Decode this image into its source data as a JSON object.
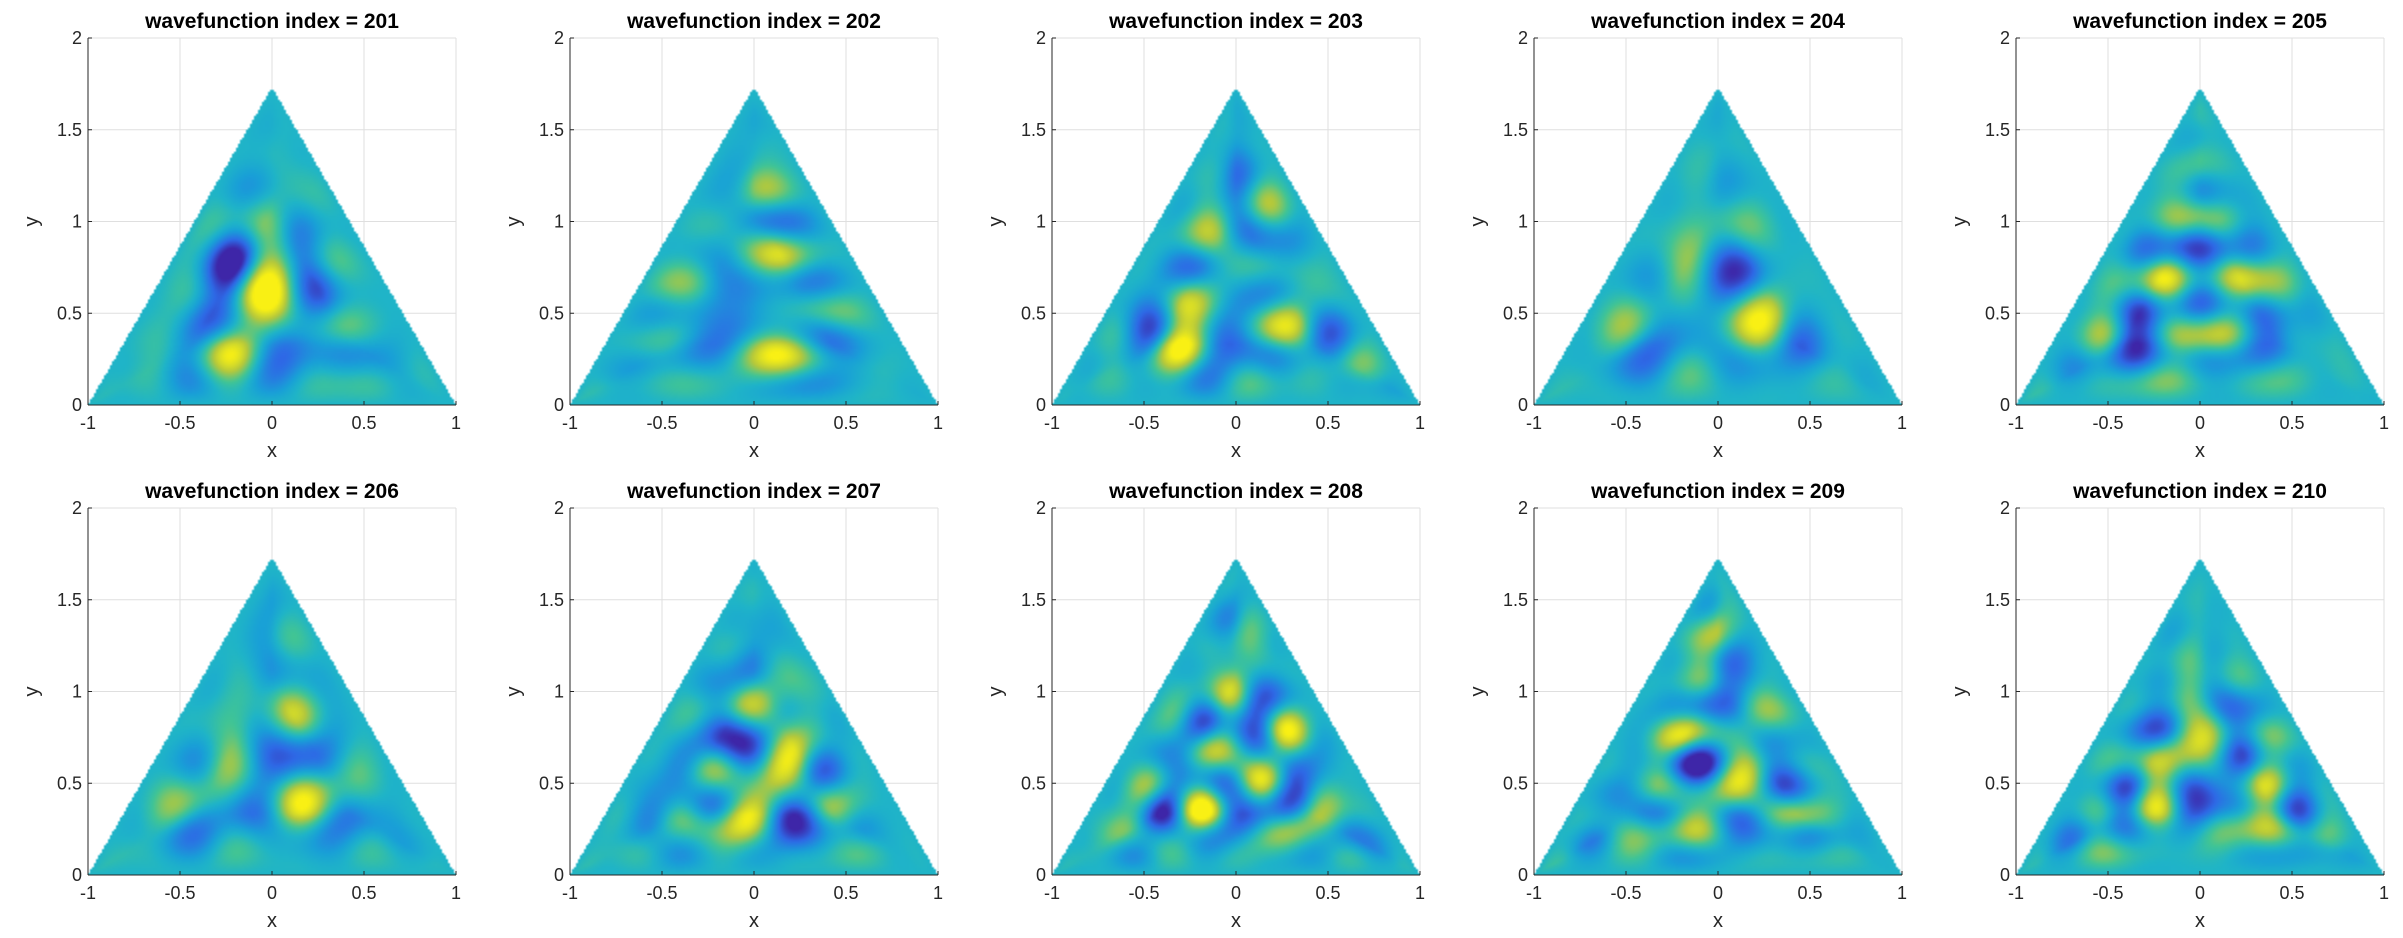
{
  "chart_data": [
    {
      "type": "heatmap",
      "title": "wavefunction index = 201",
      "xlabel": "x",
      "ylabel": "y",
      "xlim": [
        -1,
        1
      ],
      "ylim": [
        0,
        2
      ],
      "xticks": [
        "-1",
        "-0.5",
        "0",
        "0.5",
        "1"
      ],
      "yticks": [
        "0",
        "0.5",
        "1",
        "1.5",
        "2"
      ],
      "grid": true,
      "domain": "equilateral triangle (-1,0),(1,0),(0,1.732)",
      "colormap": "parula"
    },
    {
      "type": "heatmap",
      "title": "wavefunction index = 202",
      "xlabel": "x",
      "ylabel": "y",
      "xlim": [
        -1,
        1
      ],
      "ylim": [
        0,
        2
      ],
      "xticks": [
        "-1",
        "-0.5",
        "0",
        "0.5",
        "1"
      ],
      "yticks": [
        "0",
        "0.5",
        "1",
        "1.5",
        "2"
      ],
      "grid": true,
      "domain": "equilateral triangle (-1,0),(1,0),(0,1.732)",
      "colormap": "parula"
    },
    {
      "type": "heatmap",
      "title": "wavefunction index = 203",
      "xlabel": "x",
      "ylabel": "y",
      "xlim": [
        -1,
        1
      ],
      "ylim": [
        0,
        2
      ],
      "xticks": [
        "-1",
        "-0.5",
        "0",
        "0.5",
        "1"
      ],
      "yticks": [
        "0",
        "0.5",
        "1",
        "1.5",
        "2"
      ],
      "grid": true,
      "domain": "equilateral triangle (-1,0),(1,0),(0,1.732)",
      "colormap": "parula"
    },
    {
      "type": "heatmap",
      "title": "wavefunction index = 204",
      "xlabel": "x",
      "ylabel": "y",
      "xlim": [
        -1,
        1
      ],
      "ylim": [
        0,
        2
      ],
      "xticks": [
        "-1",
        "-0.5",
        "0",
        "0.5",
        "1"
      ],
      "yticks": [
        "0",
        "0.5",
        "1",
        "1.5",
        "2"
      ],
      "grid": true,
      "domain": "equilateral triangle (-1,0),(1,0),(0,1.732)",
      "colormap": "parula"
    },
    {
      "type": "heatmap",
      "title": "wavefunction index = 205",
      "xlabel": "x",
      "ylabel": "y",
      "xlim": [
        -1,
        1
      ],
      "ylim": [
        0,
        2
      ],
      "xticks": [
        "-1",
        "-0.5",
        "0",
        "0.5",
        "1"
      ],
      "yticks": [
        "0",
        "0.5",
        "1",
        "1.5",
        "2"
      ],
      "grid": true,
      "domain": "equilateral triangle (-1,0),(1,0),(0,1.732)",
      "colormap": "parula"
    },
    {
      "type": "heatmap",
      "title": "wavefunction index = 206",
      "xlabel": "x",
      "ylabel": "y",
      "xlim": [
        -1,
        1
      ],
      "ylim": [
        0,
        2
      ],
      "xticks": [
        "-1",
        "-0.5",
        "0",
        "0.5",
        "1"
      ],
      "yticks": [
        "0",
        "0.5",
        "1",
        "1.5",
        "2"
      ],
      "grid": true,
      "domain": "equilateral triangle (-1,0),(1,0),(0,1.732)",
      "colormap": "parula"
    },
    {
      "type": "heatmap",
      "title": "wavefunction index = 207",
      "xlabel": "x",
      "ylabel": "y",
      "xlim": [
        -1,
        1
      ],
      "ylim": [
        0,
        2
      ],
      "xticks": [
        "-1",
        "-0.5",
        "0",
        "0.5",
        "1"
      ],
      "yticks": [
        "0",
        "0.5",
        "1",
        "1.5",
        "2"
      ],
      "grid": true,
      "domain": "equilateral triangle (-1,0),(1,0),(0,1.732)",
      "colormap": "parula"
    },
    {
      "type": "heatmap",
      "title": "wavefunction index = 208",
      "xlabel": "x",
      "ylabel": "y",
      "xlim": [
        -1,
        1
      ],
      "ylim": [
        0,
        2
      ],
      "xticks": [
        "-1",
        "-0.5",
        "0",
        "0.5",
        "1"
      ],
      "yticks": [
        "0",
        "0.5",
        "1",
        "1.5",
        "2"
      ],
      "grid": true,
      "domain": "equilateral triangle (-1,0),(1,0),(0,1.732)",
      "colormap": "parula"
    },
    {
      "type": "heatmap",
      "title": "wavefunction index = 209",
      "xlabel": "x",
      "ylabel": "y",
      "xlim": [
        -1,
        1
      ],
      "ylim": [
        0,
        2
      ],
      "xticks": [
        "-1",
        "-0.5",
        "0",
        "0.5",
        "1"
      ],
      "yticks": [
        "0",
        "0.5",
        "1",
        "1.5",
        "2"
      ],
      "grid": true,
      "domain": "equilateral triangle (-1,0),(1,0),(0,1.732)",
      "colormap": "parula"
    },
    {
      "type": "heatmap",
      "title": "wavefunction index = 210",
      "xlabel": "x",
      "ylabel": "y",
      "xlim": [
        -1,
        1
      ],
      "ylim": [
        0,
        2
      ],
      "xticks": [
        "-1",
        "-0.5",
        "0",
        "0.5",
        "1"
      ],
      "yticks": [
        "0",
        "0.5",
        "1",
        "1.5",
        "2"
      ],
      "grid": true,
      "domain": "equilateral triangle (-1,0),(1,0),(0,1.732)",
      "colormap": "parula"
    }
  ],
  "colors": {
    "background": "#ffffff",
    "neutral": "#1fb4c8",
    "positive": "#f5e21e",
    "negative": "#3d2fb0"
  }
}
